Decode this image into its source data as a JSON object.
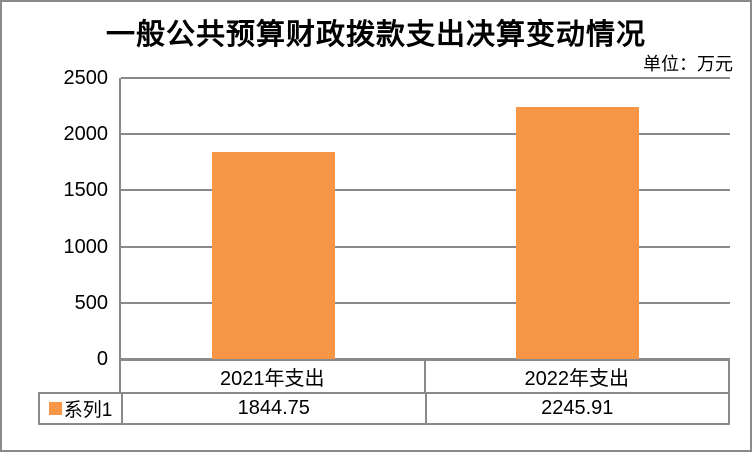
{
  "colors": {
    "bar": "#F79646",
    "grid": "#8A8A8A",
    "border": "#8A8A8A",
    "text": "#000000",
    "background": "#FFFFFF"
  },
  "chart_data": {
    "type": "bar",
    "title": "一般公共预算财政拨款支出决算变动情况",
    "unit_label": "单位：万元",
    "categories": [
      "2021年支出",
      "2022年支出"
    ],
    "series": [
      {
        "name": "系列1",
        "color": "#F79646",
        "values": [
          1844.75,
          2245.91
        ]
      }
    ],
    "value_labels": [
      "1844.75",
      "2245.91"
    ],
    "xlabel": "",
    "ylabel": "",
    "ylim": [
      0,
      2500
    ],
    "yticks": [
      2500,
      2000,
      1500,
      1000,
      500,
      0
    ],
    "grid": true,
    "legend_position": "bottom-left-table"
  }
}
